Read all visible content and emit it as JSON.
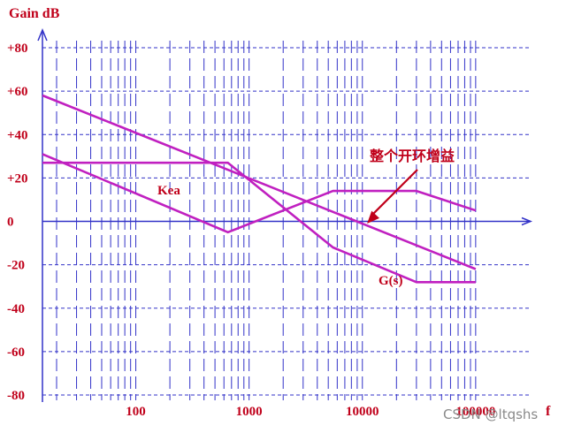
{
  "chart_data": {
    "type": "line",
    "title": "",
    "ylabel": "Gain dB",
    "xlabel": "f",
    "x_scale": "log",
    "xlim": [
      15,
      120000
    ],
    "ylim": [
      -80,
      80
    ],
    "y_ticks": [
      "+80",
      "+60",
      "+40",
      "+20",
      "0",
      "-20",
      "-40",
      "-60",
      "-80"
    ],
    "y_tick_values": [
      80,
      60,
      40,
      20,
      0,
      -20,
      -40,
      -60,
      -80
    ],
    "x_ticks": [
      "100",
      "1000",
      "10000",
      "100000"
    ],
    "x_tick_values": [
      100,
      1000,
      10000,
      100000
    ],
    "grid": true,
    "series": [
      {
        "name": "Kea",
        "x": [
          15,
          650,
          5500,
          30000,
          100000
        ],
        "y": [
          31,
          -5,
          14,
          14,
          5
        ]
      },
      {
        "name": "G(s)",
        "x": [
          15,
          650,
          5500,
          30000,
          100000
        ],
        "y": [
          27,
          27,
          -12,
          -28,
          -28
        ]
      },
      {
        "name": "",
        "x": [
          15,
          100000
        ],
        "y": [
          58,
          -22
        ]
      }
    ],
    "annotations": [
      {
        "text": "整个开环增益",
        "points_to": {
          "x": 11000,
          "y": -1
        }
      }
    ],
    "colors": {
      "series": "#c020c0",
      "grid": "#3232c8",
      "labels": "#c0001a",
      "arrow": "#c0001a"
    }
  },
  "watermark": "CSDN @ltqshs"
}
